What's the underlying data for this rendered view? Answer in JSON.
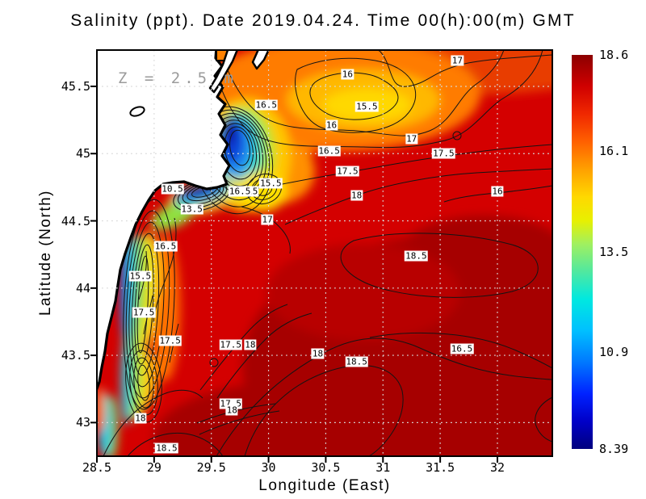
{
  "chart_data": {
    "type": "heatmap",
    "title": "Salinity (ppt). Date 2019.04.24. Time 00(h):00(m) GMT",
    "variable": "Salinity",
    "units": "ppt",
    "date": "2019.04.24",
    "time": "00(h):00(m) GMT",
    "annotation_depth": "Z = 2.5 m",
    "xlabel": "Longitude (East)",
    "ylabel": "Latitude (North)",
    "x_ticks": [
      "28.5",
      "29",
      "29.5",
      "30",
      "30.5",
      "31",
      "31.5",
      "32"
    ],
    "x_tick_values": [
      28.5,
      29,
      29.5,
      30,
      30.5,
      31,
      31.5,
      32
    ],
    "y_ticks": [
      "45.5",
      "45",
      "44.5",
      "44",
      "43.5",
      "43"
    ],
    "y_tick_values": [
      45.5,
      45,
      44.5,
      44,
      43.5,
      43
    ],
    "x_range": [
      28.5,
      32.48
    ],
    "y_range": [
      42.75,
      45.77
    ],
    "grid": true,
    "colorbar": {
      "min": 8.39,
      "max": 18.6,
      "tick_labels": [
        "18.6",
        "16.1",
        "13.5",
        "10.9",
        "8.39"
      ],
      "tick_values": [
        18.6,
        16.1,
        13.5,
        10.9,
        8.39
      ],
      "palette": [
        {
          "color": "#00007E",
          "pos": 0
        },
        {
          "color": "#0000C8",
          "pos": 7
        },
        {
          "color": "#0022FF",
          "pos": 14
        },
        {
          "color": "#0078FF",
          "pos": 22
        },
        {
          "color": "#00C0FF",
          "pos": 30
        },
        {
          "color": "#00E8E0",
          "pos": 38
        },
        {
          "color": "#50E8A0",
          "pos": 45
        },
        {
          "color": "#A0F060",
          "pos": 52
        },
        {
          "color": "#E8F000",
          "pos": 58
        },
        {
          "color": "#FFD800",
          "pos": 64
        },
        {
          "color": "#FFA000",
          "pos": 71
        },
        {
          "color": "#FF6000",
          "pos": 78
        },
        {
          "color": "#F02800",
          "pos": 85
        },
        {
          "color": "#D00000",
          "pos": 92
        },
        {
          "color": "#8C0000",
          "pos": 100
        }
      ]
    },
    "contour_labels": [
      {
        "v": "17",
        "lon": 31.65,
        "lat": 45.69
      },
      {
        "v": "16",
        "lon": 30.69,
        "lat": 45.59
      },
      {
        "v": "16.5",
        "lon": 29.98,
        "lat": 45.36
      },
      {
        "v": "15.5",
        "lon": 30.86,
        "lat": 45.35
      },
      {
        "v": "16",
        "lon": 30.55,
        "lat": 45.21
      },
      {
        "v": "17",
        "lon": 31.25,
        "lat": 45.11
      },
      {
        "v": "16.5",
        "lon": 30.53,
        "lat": 45.02
      },
      {
        "v": "17.5",
        "lon": 30.69,
        "lat": 44.87
      },
      {
        "v": "17.5",
        "lon": 31.53,
        "lat": 45.0
      },
      {
        "v": "18",
        "lon": 30.77,
        "lat": 44.69
      },
      {
        "v": "16",
        "lon": 32.0,
        "lat": 44.72
      },
      {
        "v": "15.5",
        "lon": 30.02,
        "lat": 44.78
      },
      {
        "v": "15",
        "lon": 29.86,
        "lat": 44.72
      },
      {
        "v": "10.5",
        "lon": 29.16,
        "lat": 44.74
      },
      {
        "v": "13.5",
        "lon": 29.33,
        "lat": 44.59
      },
      {
        "v": "16.5",
        "lon": 29.75,
        "lat": 44.72
      },
      {
        "v": "17",
        "lon": 29.99,
        "lat": 44.51
      },
      {
        "v": "16.5",
        "lon": 29.1,
        "lat": 44.31
      },
      {
        "v": "18.5",
        "lon": 31.29,
        "lat": 44.24
      },
      {
        "v": "15.5",
        "lon": 28.88,
        "lat": 44.09
      },
      {
        "v": "17.5",
        "lon": 28.91,
        "lat": 43.82
      },
      {
        "v": "17.5",
        "lon": 29.14,
        "lat": 43.61
      },
      {
        "v": "17.5",
        "lon": 29.67,
        "lat": 43.58
      },
      {
        "v": "18",
        "lon": 29.84,
        "lat": 43.58
      },
      {
        "v": "16.5",
        "lon": 31.69,
        "lat": 43.55
      },
      {
        "v": "18",
        "lon": 30.43,
        "lat": 43.51
      },
      {
        "v": "18.5",
        "lon": 30.77,
        "lat": 43.45
      },
      {
        "v": "17.5",
        "lon": 29.67,
        "lat": 43.14
      },
      {
        "v": "18",
        "lon": 29.68,
        "lat": 43.09
      },
      {
        "v": "18",
        "lon": 28.88,
        "lat": 43.03
      },
      {
        "v": "18.5",
        "lon": 29.11,
        "lat": 42.81
      }
    ]
  }
}
